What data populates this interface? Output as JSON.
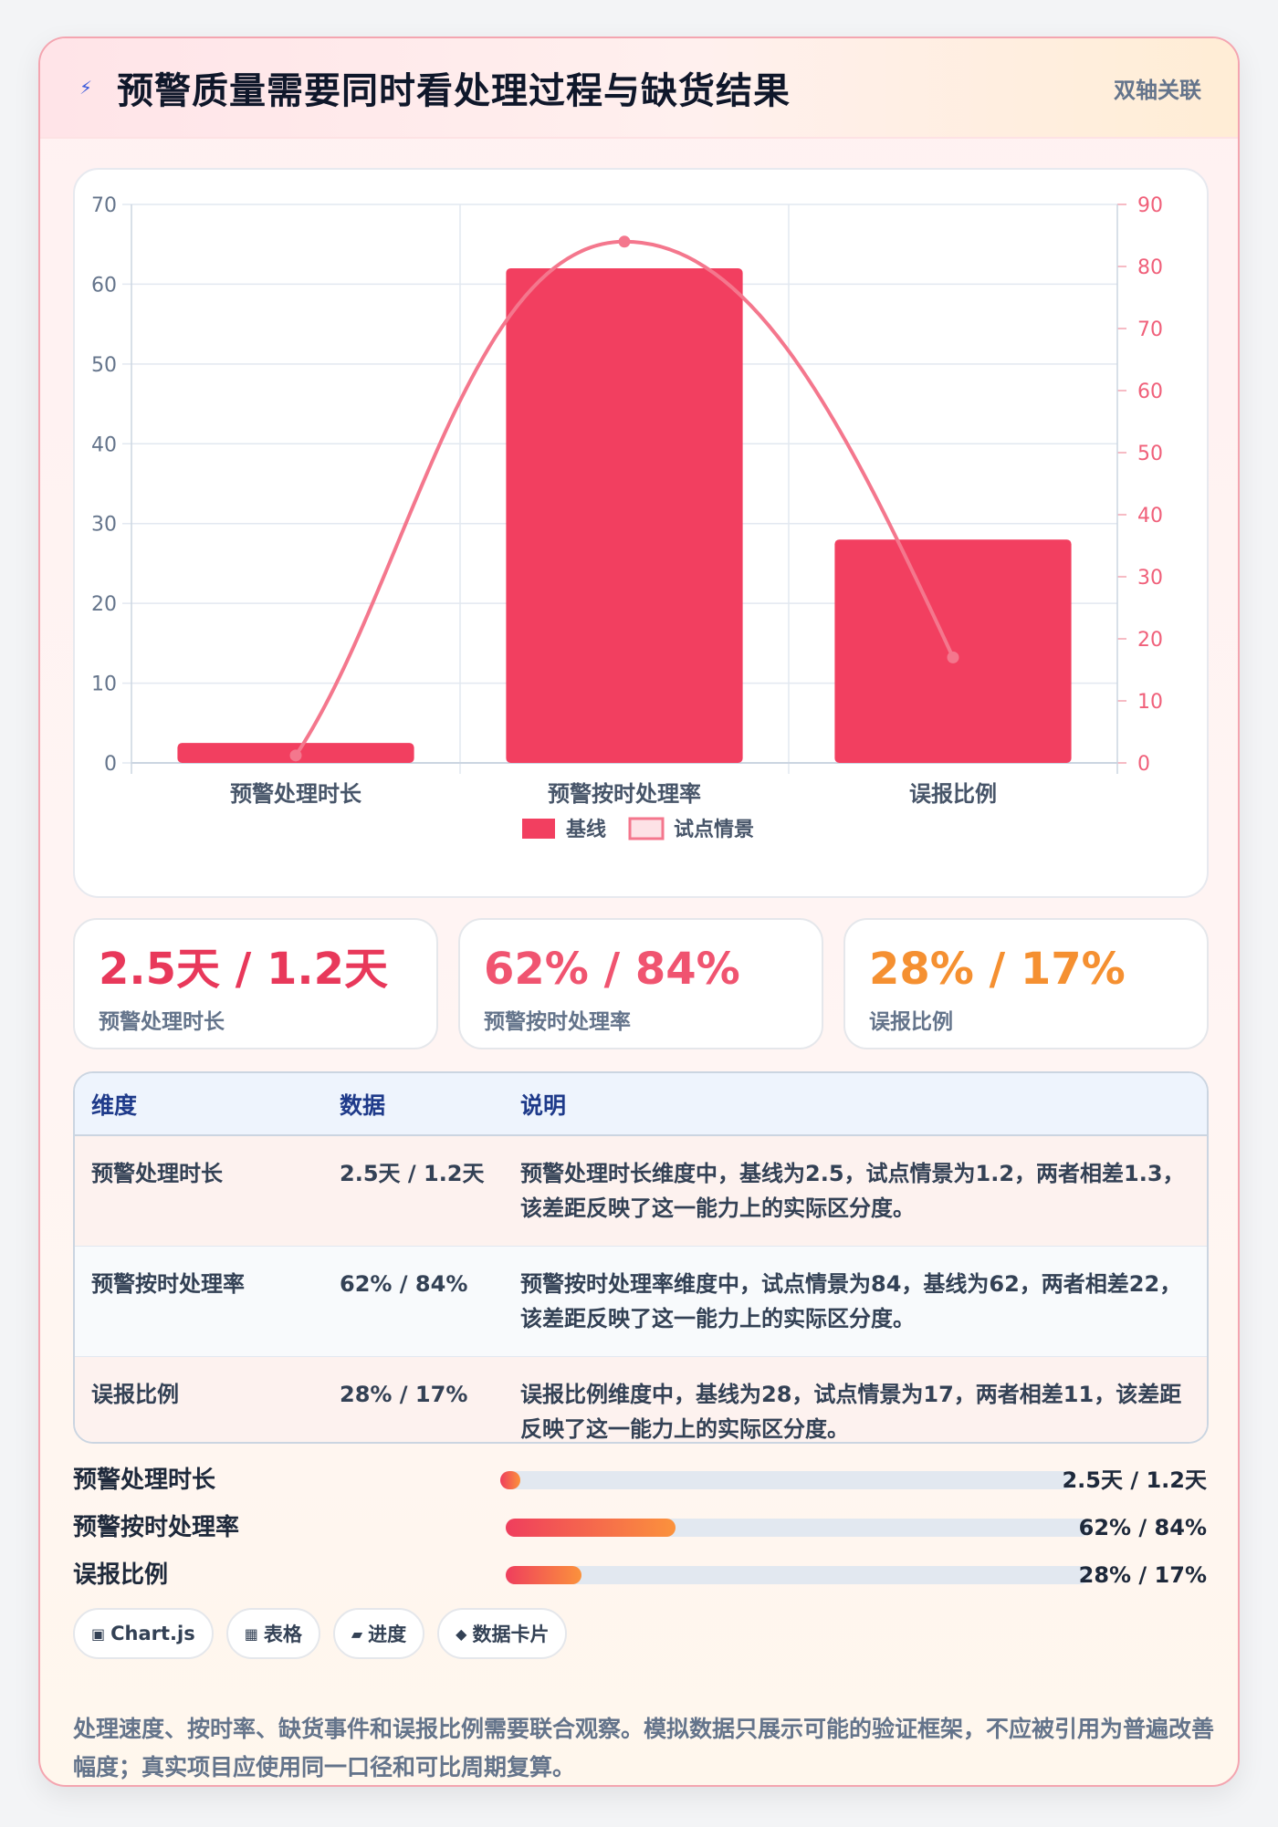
{
  "header": {
    "title": "预警质量需要同时看处理过程与缺货结果",
    "badge": "双轴关联",
    "icon": "lightning-icon"
  },
  "chart_data": {
    "type": "bar",
    "categories": [
      "预警处理时长",
      "预警按时处理率",
      "误报比例"
    ],
    "series": [
      {
        "name": "基线",
        "type": "bar",
        "axis": "left",
        "values": [
          2.5,
          62,
          28
        ],
        "color": "#f23f60"
      },
      {
        "name": "试点情景",
        "type": "line",
        "axis": "right",
        "values": [
          1.2,
          84,
          17
        ],
        "color": "#f4778d"
      }
    ],
    "y_left": {
      "min": 0,
      "max": 70,
      "ticks": [
        0,
        10,
        20,
        30,
        40,
        50,
        60,
        70
      ]
    },
    "y_right": {
      "min": 0,
      "max": 90,
      "ticks": [
        0,
        10,
        20,
        30,
        40,
        50,
        60,
        70,
        80,
        90
      ]
    },
    "grid": true,
    "legend_position": "bottom"
  },
  "stats": [
    {
      "value": "2.5天 / 1.2天",
      "label": "预警处理时长",
      "color": "#e8385a"
    },
    {
      "value": "62% / 84%",
      "label": "预警按时处理率",
      "color": "#f05470"
    },
    {
      "value": "28% / 17%",
      "label": "误报比例",
      "color": "#f59031"
    }
  ],
  "table": {
    "headers": [
      "维度",
      "数据",
      "说明"
    ],
    "rows": [
      {
        "dimension": "预警处理时长",
        "data": "2.5天 / 1.2天",
        "desc": "预警处理时长维度中，基线为2.5，试点情景为1.2，两者相差1.3，该差距反映了这一能力上的实际区分度。"
      },
      {
        "dimension": "预警按时处理率",
        "data": "62% / 84%",
        "desc": "预警按时处理率维度中，试点情景为84，基线为62，两者相差22，该差距反映了这一能力上的实际区分度。"
      },
      {
        "dimension": "误报比例",
        "data": "28% / 17%",
        "desc": "误报比例维度中，基线为28，试点情景为17，两者相差11，该差距反映了这一能力上的实际区分度。"
      }
    ]
  },
  "progress": [
    {
      "label": "预警处理时长",
      "value": "2.5天 / 1.2天",
      "fraction": 0.025
    },
    {
      "label": "预警按时处理率",
      "value": "62% / 84%",
      "fraction": 0.29
    },
    {
      "label": "误报比例",
      "value": "28% / 17%",
      "fraction": 0.13
    }
  ],
  "tags": [
    {
      "icon": "chart-icon",
      "glyph": "▣",
      "label": "Chart.js"
    },
    {
      "icon": "table-icon",
      "glyph": "▦",
      "label": "表格"
    },
    {
      "icon": "progress-icon",
      "glyph": "▰",
      "label": "进度"
    },
    {
      "icon": "diamond-icon",
      "glyph": "◆",
      "label": "数据卡片"
    }
  ],
  "note": "处理速度、按时率、缺货事件和误报比例需要联合观察。模拟数据只展示可能的验证框架，不应被引用为普遍改善幅度；真实项目应使用同一口径和可比周期复算。"
}
